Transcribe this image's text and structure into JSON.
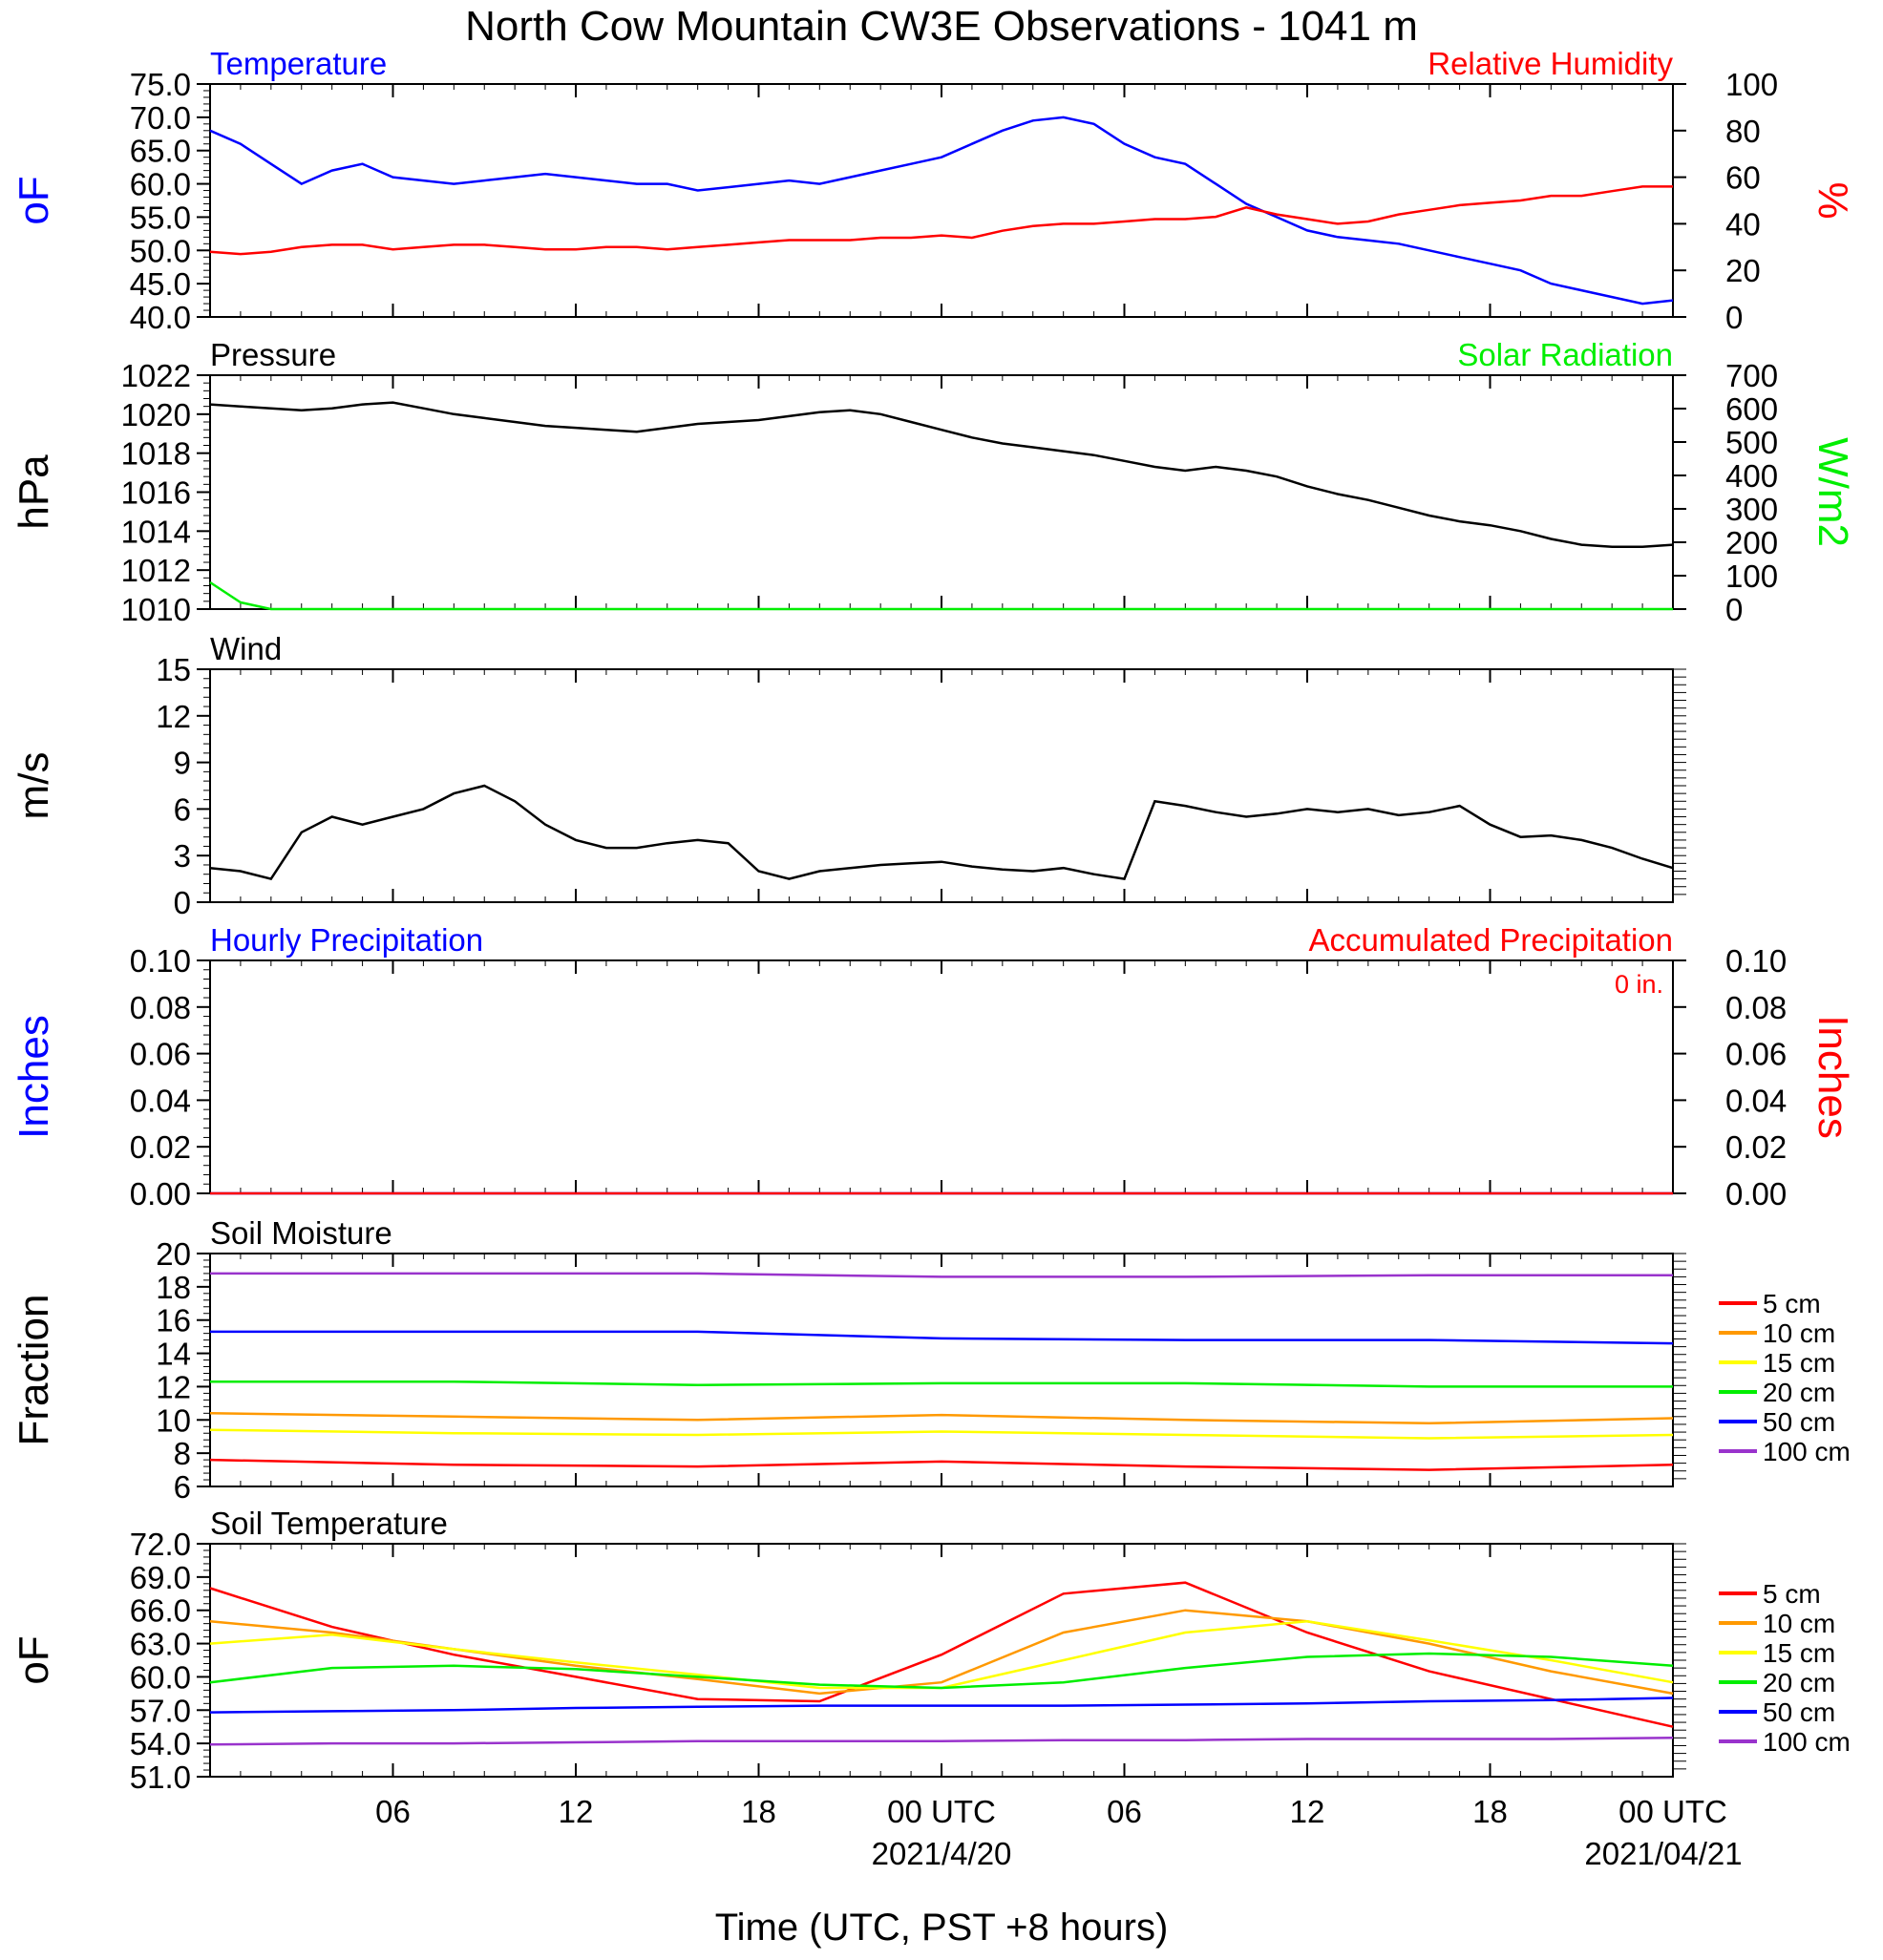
{
  "page": {
    "title": "North Cow Mountain CW3E Observations - 1041 m",
    "xlabel": "Time (UTC, PST +8 hours)",
    "x_ticks": [
      "06",
      "12",
      "18",
      "00 UTC",
      "06",
      "12",
      "18",
      "00 UTC"
    ],
    "x_dates": [
      "2021/4/20",
      "2021/04/21"
    ]
  },
  "colors": {
    "temperature": "#0000ff",
    "humidity": "#ff0000",
    "pressure": "#000000",
    "solar": "#00ee00",
    "wind": "#000000",
    "barbs": "#ff0000",
    "hourly_precip": "#0000ff",
    "accum_precip": "#ff0000"
  },
  "chart_data": [
    {
      "type": "line",
      "panel": "temperature-humidity",
      "left_title": "Temperature",
      "right_title": "Relative Humidity",
      "ylabel_left": "oF",
      "ylabel_right": "%",
      "ylim_left": [
        40,
        75
      ],
      "ylim_right": [
        0,
        100
      ],
      "yticks_left": [
        "75.0",
        "70.0",
        "65.0",
        "60.0",
        "55.0",
        "50.0",
        "45.0",
        "40.0"
      ],
      "yticks_right": [
        "100",
        "80",
        "60",
        "40",
        "20",
        "0"
      ],
      "x_hours": [
        0,
        1,
        2,
        3,
        4,
        5,
        6,
        7,
        8,
        9,
        10,
        11,
        12,
        13,
        14,
        15,
        16,
        17,
        18,
        19,
        20,
        21,
        22,
        23,
        24,
        25,
        26,
        27,
        28,
        29,
        30,
        31,
        32,
        33,
        34,
        35,
        36,
        37,
        38,
        39,
        40,
        41,
        42,
        43,
        44,
        45,
        46,
        47,
        48
      ],
      "series": [
        {
          "name": "Temperature",
          "axis": "left",
          "values": [
            68,
            66,
            63,
            60,
            62,
            63,
            61,
            60.5,
            60,
            60.5,
            61,
            61.5,
            61,
            60.5,
            60,
            60,
            59,
            59.5,
            60,
            60.5,
            60,
            61,
            62,
            63,
            64,
            66,
            68,
            69.5,
            70,
            69,
            66,
            64,
            63,
            60,
            57,
            55,
            53,
            52,
            51.5,
            51,
            50,
            49,
            48,
            47,
            45,
            44,
            43,
            42,
            42.5
          ]
        },
        {
          "name": "Relative Humidity",
          "axis": "right",
          "values": [
            28,
            27,
            28,
            30,
            31,
            31,
            29,
            30,
            31,
            31,
            30,
            29,
            29,
            30,
            30,
            29,
            30,
            31,
            32,
            33,
            33,
            33,
            34,
            34,
            35,
            34,
            37,
            39,
            40,
            40,
            41,
            42,
            42,
            43,
            47,
            44,
            42,
            40,
            41,
            44,
            46,
            48,
            49,
            50,
            52,
            52,
            54,
            56,
            56
          ]
        }
      ]
    },
    {
      "type": "line",
      "panel": "pressure-solar",
      "left_title": "Pressure",
      "right_title": "Solar Radiation",
      "ylabel_left": "hPa",
      "ylabel_right": "W/m2",
      "ylim_left": [
        1010,
        1022
      ],
      "ylim_right": [
        0,
        700
      ],
      "yticks_left": [
        "1022",
        "1020",
        "1018",
        "1016",
        "1014",
        "1012",
        "1010"
      ],
      "yticks_right": [
        "700",
        "600",
        "500",
        "400",
        "300",
        "200",
        "100",
        "0"
      ],
      "x_hours": [
        0,
        1,
        2,
        3,
        4,
        5,
        6,
        7,
        8,
        9,
        10,
        11,
        12,
        13,
        14,
        15,
        16,
        17,
        18,
        19,
        20,
        21,
        22,
        23,
        24,
        25,
        26,
        27,
        28,
        29,
        30,
        31,
        32,
        33,
        34,
        35,
        36,
        37,
        38,
        39,
        40,
        41,
        42,
        43,
        44,
        45,
        46,
        47,
        48
      ],
      "series": [
        {
          "name": "Pressure",
          "axis": "left",
          "values": [
            1020.5,
            1020.4,
            1020.3,
            1020.2,
            1020.3,
            1020.5,
            1020.6,
            1020.3,
            1020,
            1019.8,
            1019.6,
            1019.4,
            1019.3,
            1019.2,
            1019.1,
            1019.3,
            1019.5,
            1019.6,
            1019.7,
            1019.9,
            1020.1,
            1020.2,
            1020,
            1019.6,
            1019.2,
            1018.8,
            1018.5,
            1018.3,
            1018.1,
            1017.9,
            1017.6,
            1017.3,
            1017.1,
            1017.3,
            1017.1,
            1016.8,
            1016.3,
            1015.9,
            1015.6,
            1015.2,
            1014.8,
            1014.5,
            1014.3,
            1014,
            1013.6,
            1013.3,
            1013.2,
            1013.2,
            1013.3
          ]
        },
        {
          "name": "Solar Radiation",
          "axis": "right",
          "values": [
            80,
            20,
            0,
            0,
            0,
            0,
            0,
            0,
            0,
            0,
            0,
            0,
            0,
            0,
            0,
            0,
            0,
            0,
            0,
            0,
            0,
            0,
            0,
            0,
            0,
            0,
            0,
            0,
            0,
            0,
            0,
            0,
            0,
            0,
            0,
            0,
            0,
            0,
            0,
            0,
            0,
            0,
            0,
            0,
            0,
            0,
            0,
            0,
            0
          ]
        }
      ]
    },
    {
      "type": "line",
      "panel": "wind",
      "left_title": "Wind",
      "ylabel_left": "m/s",
      "ylim_left": [
        0,
        15
      ],
      "yticks_left": [
        "15",
        "12",
        "9",
        "6",
        "3",
        "0"
      ],
      "x_hours": [
        0,
        1,
        2,
        3,
        4,
        5,
        6,
        7,
        8,
        9,
        10,
        11,
        12,
        13,
        14,
        15,
        16,
        17,
        18,
        19,
        20,
        21,
        22,
        23,
        24,
        25,
        26,
        27,
        28,
        29,
        30,
        31,
        32,
        33,
        34,
        35,
        36,
        37,
        38,
        39,
        40,
        41,
        42,
        43,
        44,
        45,
        46,
        47,
        48
      ],
      "series": [
        {
          "name": "Wind Speed",
          "axis": "left",
          "values": [
            2.2,
            2,
            1.5,
            4.5,
            5.5,
            5,
            5.5,
            6,
            7,
            7.5,
            6.5,
            5,
            4,
            3.5,
            3.5,
            3.8,
            4,
            3.8,
            2,
            1.5,
            2,
            2.2,
            2.4,
            2.5,
            2.6,
            2.3,
            2.1,
            2,
            2.2,
            1.8,
            1.5,
            6.5,
            6.2,
            5.8,
            5.5,
            5.7,
            6,
            5.8,
            6,
            5.6,
            5.8,
            6.2,
            5,
            4.2,
            4.3,
            4,
            3.5,
            2.8,
            2.2
          ]
        }
      ]
    },
    {
      "type": "line",
      "panel": "precipitation",
      "left_title": "Hourly Precipitation",
      "right_title": "Accumulated Precipitation",
      "annotation": "0 in.",
      "ylabel_left": "Inches",
      "ylabel_right": "Inches",
      "ylim_left": [
        0,
        0.1
      ],
      "ylim_right": [
        0,
        0.1
      ],
      "yticks_left": [
        "0.10",
        "0.08",
        "0.06",
        "0.04",
        "0.02",
        "0.00"
      ],
      "yticks_right": [
        "0.10",
        "0.08",
        "0.06",
        "0.04",
        "0.02",
        "0.00"
      ],
      "x_hours": [
        0,
        48
      ],
      "series": [
        {
          "name": "Hourly Precipitation",
          "axis": "left",
          "values": [
            0,
            0
          ]
        },
        {
          "name": "Accumulated Precipitation",
          "axis": "right",
          "values": [
            0,
            0
          ]
        }
      ]
    },
    {
      "type": "line",
      "panel": "soil-moisture",
      "left_title": "Soil Moisture",
      "ylabel_left": "Fraction",
      "ylim_left": [
        6,
        20
      ],
      "yticks_left": [
        "20",
        "18",
        "16",
        "14",
        "12",
        "10",
        "8",
        "6"
      ],
      "legend_position": "right",
      "x_hours": [
        0,
        8,
        16,
        24,
        32,
        40,
        48
      ],
      "series": [
        {
          "name": "5 cm",
          "color": "#ff0000",
          "values": [
            7.6,
            7.3,
            7.2,
            7.5,
            7.2,
            7.0,
            7.3
          ]
        },
        {
          "name": "10 cm",
          "color": "#ff9900",
          "values": [
            10.4,
            10.2,
            10.0,
            10.3,
            10.0,
            9.8,
            10.1
          ]
        },
        {
          "name": "15 cm",
          "color": "#ffff00",
          "values": [
            9.4,
            9.2,
            9.1,
            9.3,
            9.1,
            8.9,
            9.1
          ]
        },
        {
          "name": "20 cm",
          "color": "#00ee00",
          "values": [
            12.3,
            12.3,
            12.1,
            12.2,
            12.2,
            12.0,
            12.0
          ]
        },
        {
          "name": "50 cm",
          "color": "#0000ff",
          "values": [
            15.3,
            15.3,
            15.3,
            14.9,
            14.8,
            14.8,
            14.6
          ]
        },
        {
          "name": "100 cm",
          "color": "#9933cc",
          "values": [
            18.8,
            18.8,
            18.8,
            18.6,
            18.6,
            18.7,
            18.7
          ]
        }
      ]
    },
    {
      "type": "line",
      "panel": "soil-temperature",
      "left_title": "Soil Temperature",
      "ylabel_left": "oF",
      "ylim_left": [
        51,
        72
      ],
      "yticks_left": [
        "72.0",
        "69.0",
        "66.0",
        "63.0",
        "60.0",
        "57.0",
        "54.0",
        "51.0"
      ],
      "legend_position": "right",
      "x_hours": [
        0,
        4,
        8,
        12,
        16,
        20,
        24,
        28,
        32,
        36,
        40,
        44,
        48
      ],
      "series": [
        {
          "name": "5 cm",
          "color": "#ff0000",
          "values": [
            68,
            64.5,
            62,
            60,
            58,
            57.8,
            62,
            67.5,
            68.5,
            64,
            60.5,
            58,
            55.5
          ]
        },
        {
          "name": "10 cm",
          "color": "#ff9900",
          "values": [
            65,
            64,
            62.5,
            61,
            59.8,
            58.5,
            59.5,
            64,
            66,
            65,
            63,
            60.5,
            58.5
          ]
        },
        {
          "name": "15 cm",
          "color": "#ffff00",
          "values": [
            63,
            63.8,
            62.5,
            61.3,
            60.2,
            59,
            59,
            61.5,
            64,
            65,
            63.3,
            61.5,
            59.5
          ]
        },
        {
          "name": "20 cm",
          "color": "#00ee00",
          "values": [
            59.5,
            60.8,
            61,
            60.7,
            60,
            59.3,
            59,
            59.5,
            60.8,
            61.8,
            62.1,
            61.8,
            61
          ]
        },
        {
          "name": "50 cm",
          "color": "#0000ff",
          "values": [
            56.8,
            56.9,
            57,
            57.2,
            57.3,
            57.4,
            57.4,
            57.4,
            57.5,
            57.6,
            57.8,
            57.9,
            58.1
          ]
        },
        {
          "name": "100 cm",
          "color": "#9933cc",
          "values": [
            53.9,
            54,
            54,
            54.1,
            54.2,
            54.2,
            54.2,
            54.3,
            54.3,
            54.4,
            54.4,
            54.4,
            54.5
          ]
        }
      ]
    }
  ]
}
